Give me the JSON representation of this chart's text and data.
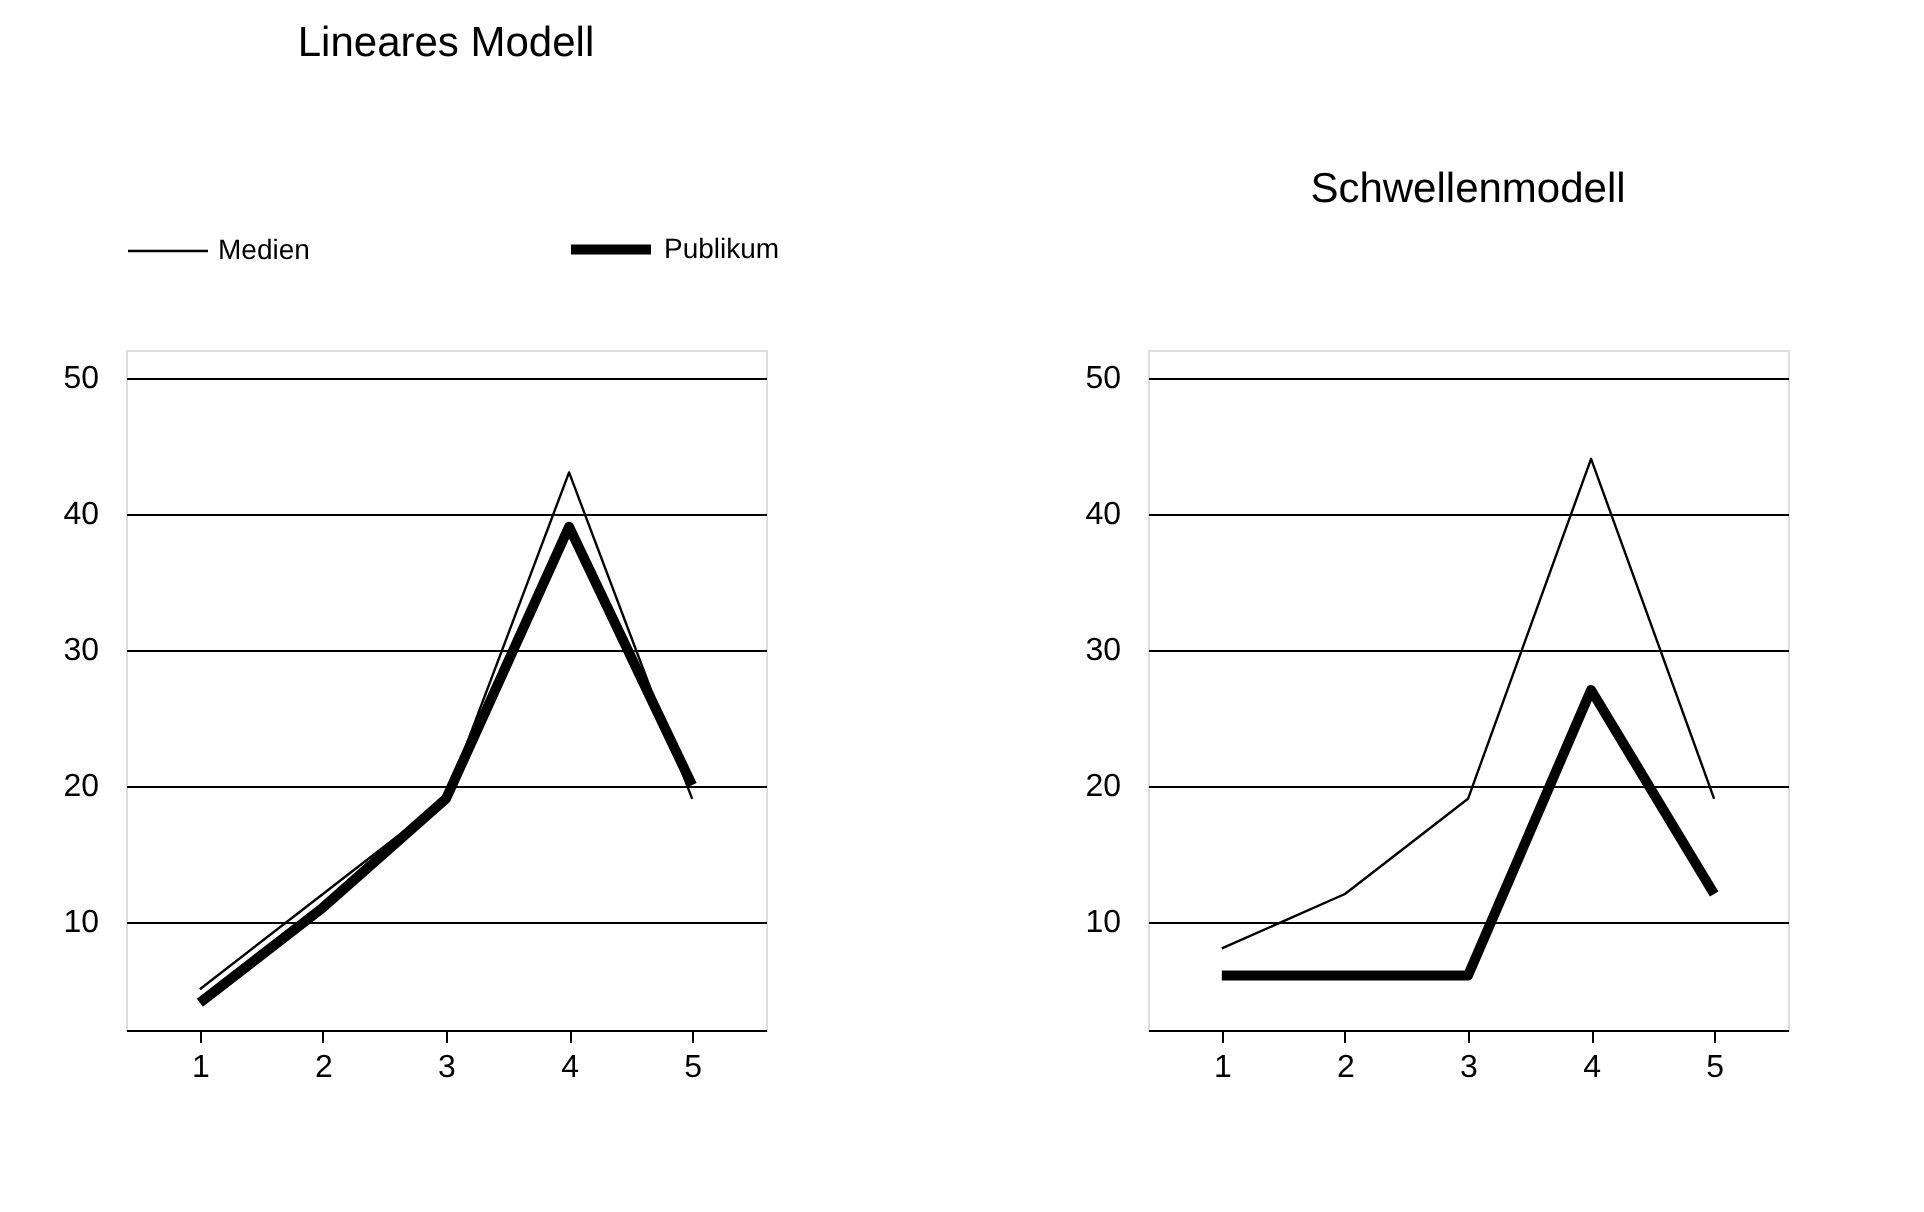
{
  "chart_data": [
    {
      "type": "line",
      "title": "Lineares Modell",
      "categories": [
        "1",
        "2",
        "3",
        "4",
        "5"
      ],
      "ylim": [
        2,
        52
      ],
      "yticks": [
        10,
        20,
        30,
        40,
        50
      ],
      "grid": "y",
      "legend": "top",
      "line_style": "solid",
      "marker": "none",
      "series": [
        {
          "name": "Medien",
          "color": "#000000",
          "values": [
            5,
            12,
            19,
            43,
            19
          ]
        },
        {
          "name": "Publikum",
          "color": "#000000",
          "values": [
            4,
            11,
            19,
            39,
            20
          ]
        }
      ]
    },
    {
      "type": "line",
      "title": "Schwellenmodell",
      "categories": [
        "1",
        "2",
        "3",
        "4",
        "5"
      ],
      "ylim": [
        2,
        52
      ],
      "yticks": [
        10,
        20,
        30,
        40,
        50
      ],
      "grid": "y",
      "legend": false,
      "line_style": "solid",
      "marker": "none",
      "series": [
        {
          "color": "#000000",
          "values": [
            8,
            12,
            19,
            44,
            19
          ]
        },
        {
          "color": "#000000",
          "values": [
            6,
            6,
            6,
            27,
            12
          ]
        }
      ]
    }
  ]
}
